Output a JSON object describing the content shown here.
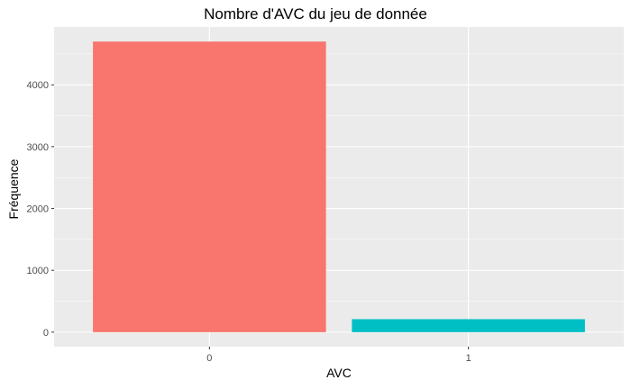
{
  "chart_data": {
    "type": "bar",
    "title": "Nombre d'AVC du jeu de donnée",
    "xlabel": "AVC",
    "ylabel": "Fréquence",
    "categories": [
      "0",
      "1"
    ],
    "values": [
      4700,
      210
    ],
    "yticks": [
      0,
      1000,
      2000,
      3000,
      4000
    ],
    "ylim": [
      -235,
      4935
    ],
    "grid": true,
    "legend": "none",
    "colors": [
      "#F8766D",
      "#00BFC4"
    ],
    "panel_background": "#EBEBEB",
    "grid_color": "#FFFFFF"
  }
}
